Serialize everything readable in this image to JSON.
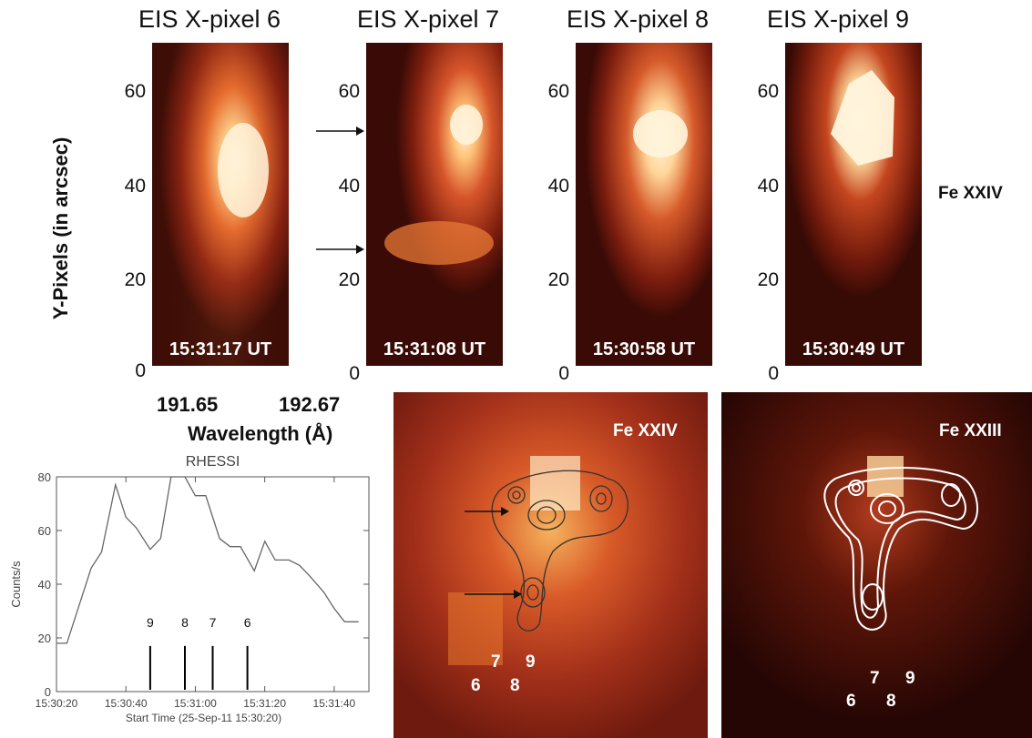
{
  "strips": [
    {
      "title": "EIS X-pixel 6",
      "time": "15:31:17 UT"
    },
    {
      "title": "EIS X-pixel 7",
      "time": "15:31:08 UT"
    },
    {
      "title": "EIS X-pixel 8",
      "time": "15:30:58 UT"
    },
    {
      "title": "EIS X-pixel 9",
      "time": "15:30:49 UT"
    }
  ],
  "strip_axis": {
    "ylabel": "Y-Pixels (in arcsec)",
    "yticks": [
      "0",
      "20",
      "40",
      "60"
    ],
    "x_start": "191.65",
    "x_end": "192.67",
    "xlabel": "Wavelength (Å)",
    "ion": "Fe XXIV"
  },
  "maps": [
    {
      "ion": "Fe XXIV",
      "pixel_labels": [
        "7",
        "9",
        "6",
        "8"
      ]
    },
    {
      "ion": "Fe XXIII",
      "pixel_labels": [
        "7",
        "9",
        "6",
        "8"
      ]
    }
  ],
  "colors": {
    "hot_low": "#2a0805",
    "hot_mid": "#b7351c",
    "hot_high": "#ffe7c2",
    "line": "#555555"
  },
  "chart_data": {
    "type": "line",
    "title": "RHESSI",
    "xlabel": "Start Time (25-Sep-11 15:30:20)",
    "ylabel": "Counts/s",
    "x": [
      0,
      3,
      10,
      13,
      17,
      20,
      23,
      27,
      30,
      33,
      37,
      40,
      43,
      47,
      50,
      53,
      57,
      60,
      63,
      67,
      70,
      73,
      77,
      80,
      83,
      87
    ],
    "values": [
      18,
      18,
      46,
      52,
      77,
      65,
      61,
      53,
      57,
      80,
      80,
      73,
      73,
      57,
      54,
      54,
      45,
      56,
      49,
      49,
      47,
      43,
      37,
      31,
      26,
      26
    ],
    "xlim": [
      0,
      90
    ],
    "ylim": [
      0,
      80
    ],
    "xtick_values": [
      0,
      20,
      40,
      60,
      80
    ],
    "xtick_labels": [
      "15:30:20",
      "15:30:40",
      "15:31:00",
      "15:31:20",
      "15:31:40"
    ],
    "ytick_values": [
      0,
      20,
      40,
      60,
      80
    ],
    "ytick_labels": [
      "0",
      "20",
      "40",
      "60",
      "80"
    ],
    "markers": [
      {
        "label": "9",
        "x": 27
      },
      {
        "label": "8",
        "x": 37
      },
      {
        "label": "7",
        "x": 45
      },
      {
        "label": "6",
        "x": 55
      }
    ]
  }
}
